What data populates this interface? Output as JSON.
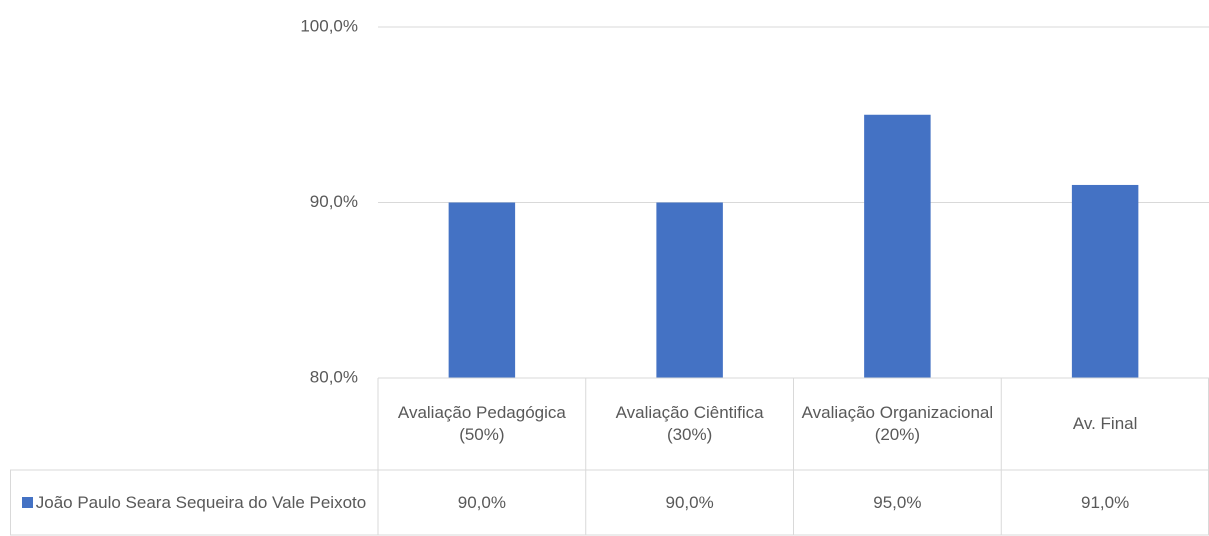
{
  "chart_data": {
    "type": "bar",
    "categories": [
      "Avaliação Pedagógica (50%)",
      "Avaliação Ciêntifica (30%)",
      "Avaliação Organizacional (20%)",
      "Av. Final"
    ],
    "series": [
      {
        "name": "João Paulo Seara Sequeira do Vale Peixoto",
        "color": "#4472c4",
        "values": [
          90,
          90,
          95,
          91
        ],
        "value_labels": [
          "90,0%",
          "90,0%",
          "95,0%",
          "91,0%"
        ]
      }
    ],
    "ylim": [
      80,
      100
    ],
    "yticks": [
      {
        "value": 80,
        "label": "80,0%"
      },
      {
        "value": 90,
        "label": "90,0%"
      },
      {
        "value": 100,
        "label": "100,0%"
      }
    ],
    "grid": true
  }
}
